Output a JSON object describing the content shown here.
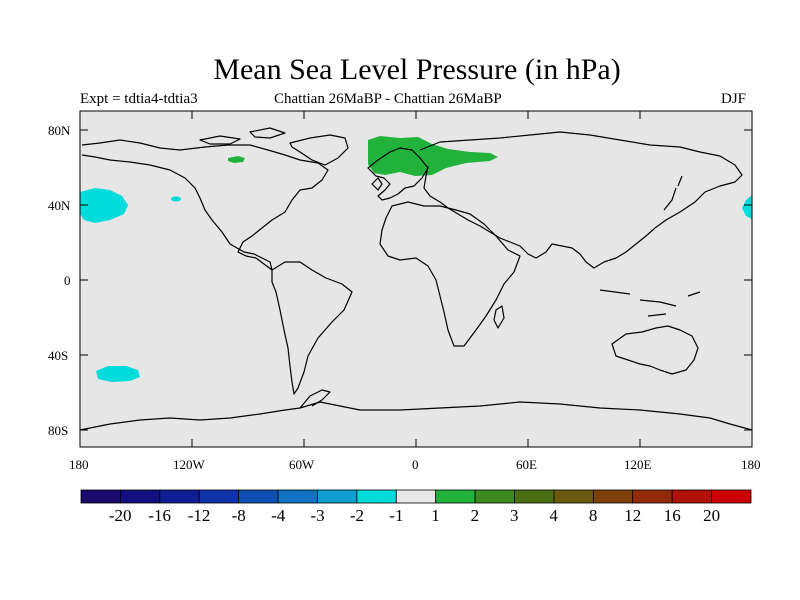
{
  "title": "Mean Sea Level Pressure (in hPa)",
  "subtitle_left": "Expt = tdtia4-tdtia3",
  "subtitle_center": "Chattian  26MaBP - Chattian  26MaBP",
  "subtitle_right": "DJF",
  "lat_labels": [
    "80N",
    "40N",
    "0",
    "40S",
    "80S"
  ],
  "lon_labels": [
    "180",
    "120W",
    "60W",
    "0",
    "60E",
    "120E",
    "180"
  ],
  "colorbar": {
    "labels": [
      "-20",
      "-16",
      "-12",
      "-8",
      "-4",
      "-3",
      "-2",
      "-1",
      "1",
      "2",
      "3",
      "4",
      "8",
      "12",
      "16",
      "20"
    ],
    "colors": [
      "#1a0a6e",
      "#140f80",
      "#0f1f93",
      "#0f33a8",
      "#0d4fb3",
      "#1271c2",
      "#109ed0",
      "#00dcdc",
      "#e6e6e6",
      "#21b23c",
      "#3e8a21",
      "#4b6e12",
      "#6b5a0e",
      "#7e3f0b",
      "#952a0a",
      "#b21208",
      "#cc0000"
    ]
  },
  "map_colors": {
    "ocean": "#e6e6e6",
    "coast": "#000000",
    "positive": "#21b23c",
    "negative": "#00dcdc"
  },
  "anomalies": [
    {
      "name": "north-eurasia-high",
      "sign": "positive",
      "lon_range": [
        -25,
        45
      ],
      "lat_range": [
        65,
        80
      ]
    },
    {
      "name": "arctic-canada-high",
      "sign": "positive",
      "lon_range": [
        -95,
        -88
      ],
      "lat_range": [
        62,
        66
      ]
    },
    {
      "name": "north-pacific-low",
      "sign": "negative",
      "lon_range": [
        180,
        -155
      ],
      "lat_range": [
        30,
        47
      ]
    },
    {
      "name": "central-pacific-low",
      "sign": "negative",
      "lon_range": [
        -142,
        -138
      ],
      "lat_range": [
        41,
        43
      ]
    },
    {
      "name": "south-pacific-low",
      "sign": "negative",
      "lon_range": [
        -175,
        -160
      ],
      "lat_range": [
        -55,
        -48
      ]
    }
  ]
}
